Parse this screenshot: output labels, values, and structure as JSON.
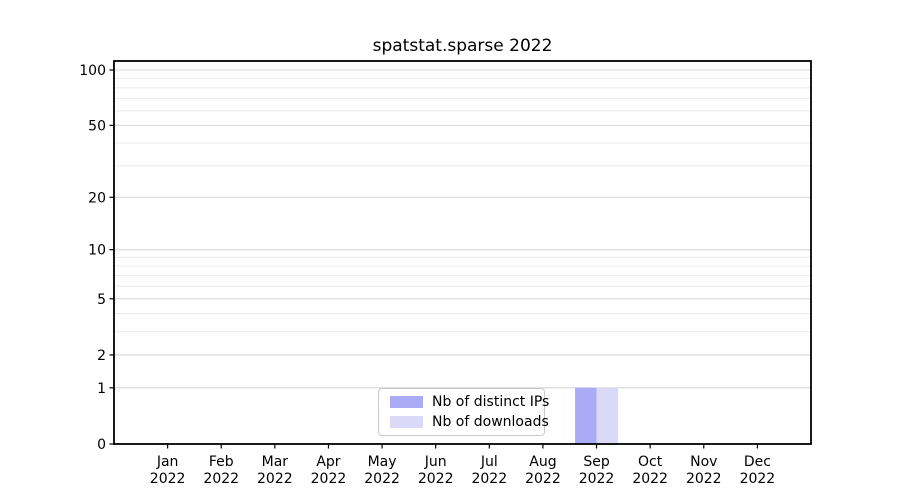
{
  "chart_data": {
    "type": "bar",
    "title": "spatstat.sparse 2022",
    "categories": [
      "Jan 2022",
      "Feb 2022",
      "Mar 2022",
      "Apr 2022",
      "May 2022",
      "Jun 2022",
      "Jul 2022",
      "Aug 2022",
      "Sep 2022",
      "Oct 2022",
      "Nov 2022",
      "Dec 2022"
    ],
    "series": [
      {
        "name": "Nb of distinct IPs",
        "color": "#aaaaf6",
        "values": [
          0,
          0,
          0,
          0,
          0,
          0,
          0,
          0,
          1,
          0,
          0,
          0
        ]
      },
      {
        "name": "Nb of downloads",
        "color": "#dadaf8",
        "values": [
          0,
          0,
          0,
          0,
          0,
          0,
          0,
          0,
          1,
          0,
          0,
          0
        ]
      }
    ],
    "xlabel": "",
    "ylabel": "",
    "yscale": "log1p",
    "ylim": [
      0,
      112
    ],
    "y_major_ticks": [
      0,
      1,
      2,
      5,
      10,
      20,
      50,
      100
    ],
    "y_minor_gridlines": [
      3,
      4,
      6,
      7,
      8,
      9,
      30,
      40,
      60,
      70,
      80,
      90
    ],
    "grid": "horizontal",
    "legend_position": "inside-bottom-center",
    "colors": {
      "grid_major": "#d7d7d7",
      "grid_minor": "#ececec",
      "spine": "#000000",
      "text": "#000000",
      "legend_border": "#c9c9c9",
      "background": "#ffffff"
    }
  }
}
